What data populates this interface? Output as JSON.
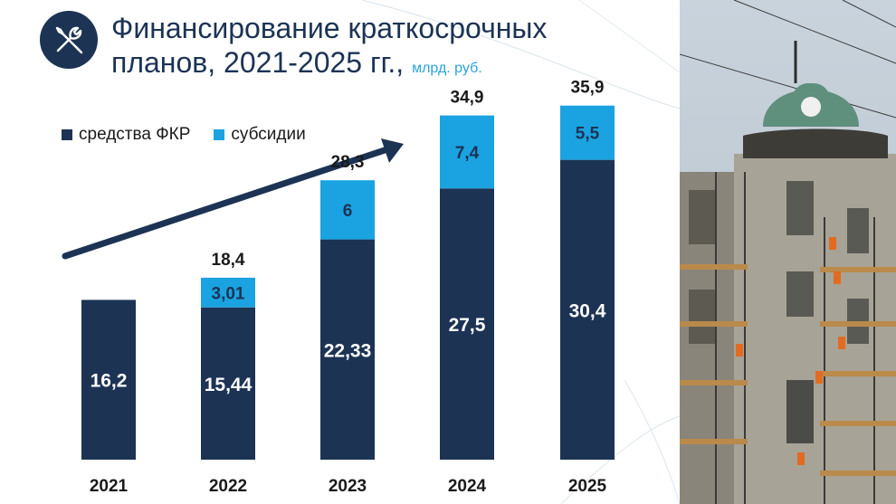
{
  "header": {
    "title": "Финансирование краткосрочных планов, 2021-2025 гг.,",
    "unit": "млрд. руб.",
    "logo_icon": "wrench-screwdriver-icon"
  },
  "photo": {
    "icon": "building-restoration-photo"
  },
  "colors": {
    "fkr": "#1c3354",
    "subsidies": "#1aa3e0",
    "text": "#1a1a1a",
    "arrow": "#1c3354"
  },
  "chart_data": {
    "type": "bar",
    "stacked": true,
    "categories": [
      "2021",
      "2022",
      "2023",
      "2024",
      "2025"
    ],
    "series": [
      {
        "name": "средства ФКР",
        "values": [
          16.2,
          15.44,
          22.33,
          27.5,
          30.4
        ],
        "labels": [
          "16,2",
          "15,44",
          "22,33",
          "27,5",
          "30,4"
        ]
      },
      {
        "name": "субсидии",
        "values": [
          0,
          3.01,
          6,
          7.4,
          5.5
        ],
        "labels": [
          "",
          "3,01",
          "6",
          "7,4",
          "5,5"
        ]
      }
    ],
    "totals": [
      "",
      "18,4",
      "28,3",
      "34,9",
      "35,9"
    ],
    "legend_position": "top-left",
    "grid": false,
    "annotation": "upward trend arrow"
  }
}
